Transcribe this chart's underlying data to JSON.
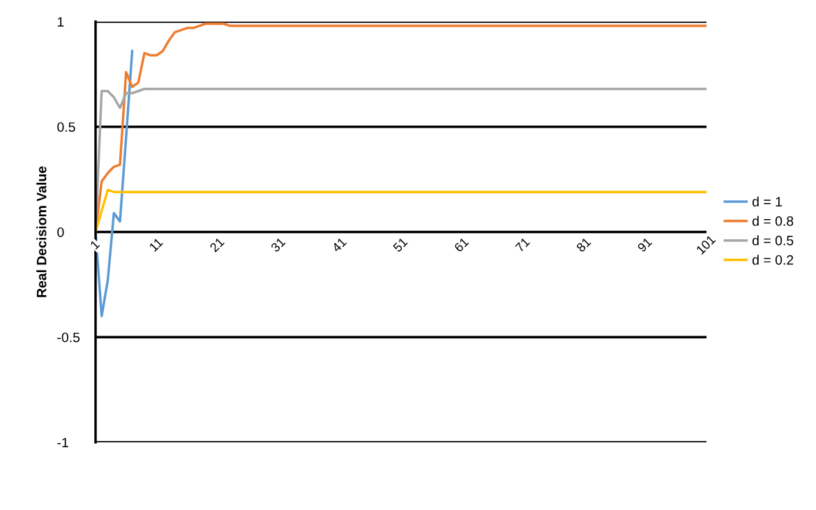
{
  "chart_data": {
    "type": "line",
    "ylabel": "Real Decisiom Value",
    "ylim": [
      -1,
      1
    ],
    "yticks": [
      -1,
      -0.5,
      0,
      0.5,
      1
    ],
    "grid": "y",
    "legend": "right",
    "marker": "none",
    "line_style": "solid",
    "categories": [
      "1",
      null,
      null,
      null,
      null,
      null,
      null,
      null,
      null,
      null,
      "11",
      null,
      null,
      null,
      null,
      null,
      null,
      null,
      null,
      null,
      "21",
      null,
      null,
      null,
      null,
      null,
      null,
      null,
      null,
      null,
      "31",
      null,
      null,
      null,
      null,
      null,
      null,
      null,
      null,
      null,
      "41",
      null,
      null,
      null,
      null,
      null,
      null,
      null,
      null,
      null,
      "51",
      null,
      null,
      null,
      null,
      null,
      null,
      null,
      null,
      null,
      "61",
      null,
      null,
      null,
      null,
      null,
      null,
      null,
      null,
      null,
      "71",
      null,
      null,
      null,
      null,
      null,
      null,
      null,
      null,
      null,
      "81",
      null,
      null,
      null,
      null,
      null,
      null,
      null,
      null,
      null,
      "91",
      null,
      null,
      null,
      null,
      null,
      null,
      null,
      null,
      null,
      "101"
    ],
    "series": [
      {
        "name": "d = 1",
        "color": "#5b9bd5",
        "values": [
          0,
          -0.4,
          -0.23,
          0.09,
          0.05,
          0.45,
          0.86,
          null,
          null,
          null,
          null,
          null,
          null,
          null,
          null,
          null,
          null,
          null,
          null,
          null,
          null,
          null,
          null,
          null,
          null,
          null,
          null,
          null,
          null,
          null,
          null,
          null,
          null,
          null,
          null,
          null,
          null,
          null,
          null,
          null,
          null,
          null,
          null,
          null,
          null,
          null,
          null,
          null,
          null,
          null,
          null,
          null,
          null,
          null,
          null,
          null,
          null,
          null,
          null,
          null,
          null,
          null,
          null,
          null,
          null,
          null,
          null,
          null,
          null,
          null,
          null,
          null,
          null,
          null,
          null,
          null,
          null,
          null,
          null,
          null,
          null,
          null,
          null,
          null,
          null,
          null,
          null,
          null,
          null,
          null,
          null,
          null,
          null,
          null,
          null,
          null,
          null,
          null,
          null,
          null,
          null
        ]
      },
      {
        "name": "d = 0.8",
        "color": "#ed7d31",
        "values": [
          0,
          0.24,
          0.28,
          0.31,
          0.32,
          0.76,
          0.69,
          0.71,
          0.85,
          0.84,
          0.84,
          0.86,
          0.91,
          0.95,
          0.96,
          0.97,
          0.97,
          0.98,
          0.99,
          0.99,
          0.99,
          0.99,
          0.98,
          0.98,
          0.98,
          0.98,
          0.98,
          0.98,
          0.98,
          0.98,
          0.98,
          0.98,
          0.98,
          0.98,
          0.98,
          0.98,
          0.98,
          0.98,
          0.98,
          0.98,
          0.98,
          0.98,
          0.98,
          0.98,
          0.98,
          0.98,
          0.98,
          0.98,
          0.98,
          0.98,
          0.98,
          0.98,
          0.98,
          0.98,
          0.98,
          0.98,
          0.98,
          0.98,
          0.98,
          0.98,
          0.98,
          0.98,
          0.98,
          0.98,
          0.98,
          0.98,
          0.98,
          0.98,
          0.98,
          0.98,
          0.98,
          0.98,
          0.98,
          0.98,
          0.98,
          0.98,
          0.98,
          0.98,
          0.98,
          0.98,
          0.98,
          0.98,
          0.98,
          0.98,
          0.98,
          0.98,
          0.98,
          0.98,
          0.98,
          0.98,
          0.98,
          0.98,
          0.98,
          0.98,
          0.98,
          0.98,
          0.98,
          0.98,
          0.98,
          0.98,
          0.98
        ]
      },
      {
        "name": "d = 0.5",
        "color": "#a5a5a5",
        "values": [
          0,
          0.67,
          0.67,
          0.64,
          0.59,
          0.66,
          0.66,
          0.67,
          0.68,
          0.68,
          0.68,
          0.68,
          0.68,
          0.68,
          0.68,
          0.68,
          0.68,
          0.68,
          0.68,
          0.68,
          0.68,
          0.68,
          0.68,
          0.68,
          0.68,
          0.68,
          0.68,
          0.68,
          0.68,
          0.68,
          0.68,
          0.68,
          0.68,
          0.68,
          0.68,
          0.68,
          0.68,
          0.68,
          0.68,
          0.68,
          0.68,
          0.68,
          0.68,
          0.68,
          0.68,
          0.68,
          0.68,
          0.68,
          0.68,
          0.68,
          0.68,
          0.68,
          0.68,
          0.68,
          0.68,
          0.68,
          0.68,
          0.68,
          0.68,
          0.68,
          0.68,
          0.68,
          0.68,
          0.68,
          0.68,
          0.68,
          0.68,
          0.68,
          0.68,
          0.68,
          0.68,
          0.68,
          0.68,
          0.68,
          0.68,
          0.68,
          0.68,
          0.68,
          0.68,
          0.68,
          0.68,
          0.68,
          0.68,
          0.68,
          0.68,
          0.68,
          0.68,
          0.68,
          0.68,
          0.68,
          0.68,
          0.68,
          0.68,
          0.68,
          0.68,
          0.68,
          0.68,
          0.68,
          0.68,
          0.68,
          0.68
        ]
      },
      {
        "name": "d = 0.2",
        "color": "#ffc000",
        "values": [
          0,
          0.1,
          0.2,
          0.19,
          0.19,
          0.19,
          0.19,
          0.19,
          0.19,
          0.19,
          0.19,
          0.19,
          0.19,
          0.19,
          0.19,
          0.19,
          0.19,
          0.19,
          0.19,
          0.19,
          0.19,
          0.19,
          0.19,
          0.19,
          0.19,
          0.19,
          0.19,
          0.19,
          0.19,
          0.19,
          0.19,
          0.19,
          0.19,
          0.19,
          0.19,
          0.19,
          0.19,
          0.19,
          0.19,
          0.19,
          0.19,
          0.19,
          0.19,
          0.19,
          0.19,
          0.19,
          0.19,
          0.19,
          0.19,
          0.19,
          0.19,
          0.19,
          0.19,
          0.19,
          0.19,
          0.19,
          0.19,
          0.19,
          0.19,
          0.19,
          0.19,
          0.19,
          0.19,
          0.19,
          0.19,
          0.19,
          0.19,
          0.19,
          0.19,
          0.19,
          0.19,
          0.19,
          0.19,
          0.19,
          0.19,
          0.19,
          0.19,
          0.19,
          0.19,
          0.19,
          0.19,
          0.19,
          0.19,
          0.19,
          0.19,
          0.19,
          0.19,
          0.19,
          0.19,
          0.19,
          0.19,
          0.19,
          0.19,
          0.19,
          0.19,
          0.19,
          0.19,
          0.19,
          0.19,
          0.19,
          0.19
        ]
      }
    ]
  }
}
